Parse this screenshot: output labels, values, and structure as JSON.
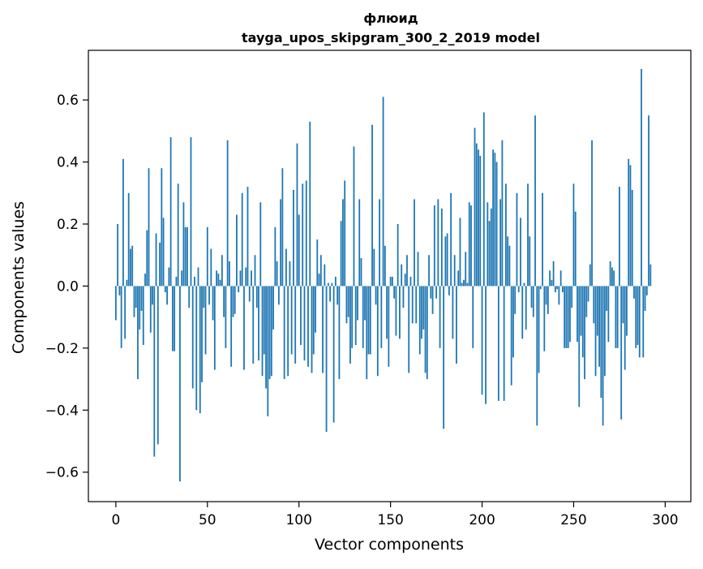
{
  "chart_data": {
    "type": "bar",
    "title": "флюид",
    "subtitle": "tayga_upos_skipgram_300_2_2019 model",
    "xlabel": "Vector components",
    "ylabel": "Components values",
    "xlim": [
      -15,
      314
    ],
    "ylim": [
      -0.695,
      0.76
    ],
    "xticks": [
      0,
      50,
      100,
      150,
      200,
      250,
      300
    ],
    "xtick_labels": [
      "0",
      "50",
      "100",
      "150",
      "200",
      "250",
      "300"
    ],
    "yticks": [
      -0.6,
      -0.4,
      -0.2,
      0.0,
      0.2,
      0.4,
      0.6
    ],
    "ytick_labels": [
      "−0.6",
      "−0.4",
      "−0.2",
      "0.0",
      "0.2",
      "0.4",
      "0.6"
    ],
    "grid": false,
    "bar_color": "#1f77b4",
    "values": [
      -0.11,
      0.2,
      -0.03,
      -0.2,
      0.41,
      -0.17,
      0.02,
      0.3,
      0.12,
      0.13,
      -0.1,
      -0.07,
      -0.3,
      -0.14,
      -0.08,
      -0.19,
      0.04,
      0.18,
      0.38,
      -0.15,
      -0.06,
      -0.55,
      0.17,
      -0.51,
      0.14,
      0.38,
      0.22,
      -0.02,
      -0.06,
      0.06,
      0.48,
      -0.21,
      -0.21,
      0.03,
      0.33,
      -0.63,
      0.05,
      0.27,
      0.19,
      0.19,
      -0.07,
      0.48,
      -0.33,
      0.03,
      -0.4,
      0.06,
      -0.41,
      -0.31,
      -0.07,
      -0.22,
      0.19,
      -0.06,
      0.12,
      -0.11,
      -0.27,
      0.05,
      0.04,
      0.02,
      0.1,
      -0.1,
      -0.2,
      0.47,
      0.08,
      -0.26,
      -0.1,
      -0.09,
      0.23,
      -0.02,
      0.05,
      0.3,
      -0.27,
      0.06,
      0.32,
      -0.05,
      0.05,
      -0.25,
      0.1,
      -0.07,
      -0.24,
      0.27,
      -0.29,
      -0.22,
      -0.33,
      -0.42,
      -0.3,
      -0.29,
      -0.14,
      0.19,
      0.08,
      -0.06,
      0.28,
      0.38,
      -0.3,
      0.12,
      -0.29,
      0.08,
      -0.22,
      0.31,
      -0.25,
      0.46,
      0.23,
      -0.19,
      0.33,
      -0.24,
      0.34,
      -0.26,
      0.53,
      -0.28,
      -0.22,
      -0.15,
      0.15,
      0.04,
      0.1,
      -0.28,
      0.07,
      -0.47,
      0.01,
      -0.05,
      0.01,
      -0.44,
      0.03,
      -0.06,
      -0.3,
      0.21,
      0.28,
      0.34,
      -0.12,
      -0.1,
      -0.25,
      -0.2,
      0.45,
      -0.19,
      -0.11,
      0.28,
      0.09,
      -0.2,
      -0.11,
      -0.3,
      -0.22,
      -0.22,
      0.52,
      0.12,
      -0.06,
      -0.29,
      0.28,
      -0.2,
      0.61,
      0.13,
      -0.17,
      -0.26,
      0.03,
      0.03,
      -0.04,
      -0.16,
      0.2,
      -0.17,
      0.07,
      -0.07,
      0.04,
      0.1,
      -0.28,
      0.03,
      -0.12,
      0.28,
      -0.12,
      0.11,
      -0.22,
      -0.17,
      -0.14,
      -0.28,
      -0.3,
      0.1,
      -0.04,
      -0.09,
      0.26,
      -0.04,
      0.28,
      -0.2,
      0.25,
      -0.46,
      0.16,
      0.17,
      -0.03,
      0.3,
      -0.17,
      0.1,
      -0.25,
      0.05,
      0.22,
      0.01,
      0.02,
      0.11,
      0.01,
      0.27,
      0.26,
      -0.2,
      0.51,
      0.46,
      0.44,
      0.42,
      -0.35,
      0.56,
      -0.38,
      0.27,
      0.21,
      0.25,
      0.44,
      0.43,
      0.4,
      -0.37,
      0.28,
      0.47,
      -0.37,
      0.33,
      0.16,
      0.13,
      -0.32,
      -0.23,
      -0.09,
      0.3,
      -0.02,
      0.22,
      -0.17,
      0.01,
      -0.14,
      0.33,
      0.16,
      -0.07,
      -0.1,
      0.55,
      -0.45,
      -0.28,
      -0.01,
      0.3,
      -0.21,
      -0.06,
      -0.09,
      0.05,
      0.02,
      0.08,
      -0.02,
      -0.01,
      -0.06,
      0.05,
      -0.02,
      -0.2,
      -0.2,
      -0.2,
      -0.18,
      -0.07,
      0.33,
      0.24,
      -0.18,
      -0.39,
      -0.16,
      -0.23,
      -0.3,
      -0.1,
      -0.05,
      0.07,
      0.47,
      -0.12,
      -0.29,
      -0.16,
      -0.26,
      -0.36,
      -0.45,
      -0.29,
      -0.08,
      -0.18,
      0.08,
      0.06,
      0.05,
      -0.2,
      -0.2,
      0.32,
      -0.43,
      -0.12,
      -0.27,
      -0.16,
      0.41,
      0.39,
      0.31,
      -0.04,
      -0.2,
      -0.19,
      -0.23,
      0.7,
      -0.23,
      -0.08,
      -0.03,
      0.55,
      0.07
    ]
  }
}
